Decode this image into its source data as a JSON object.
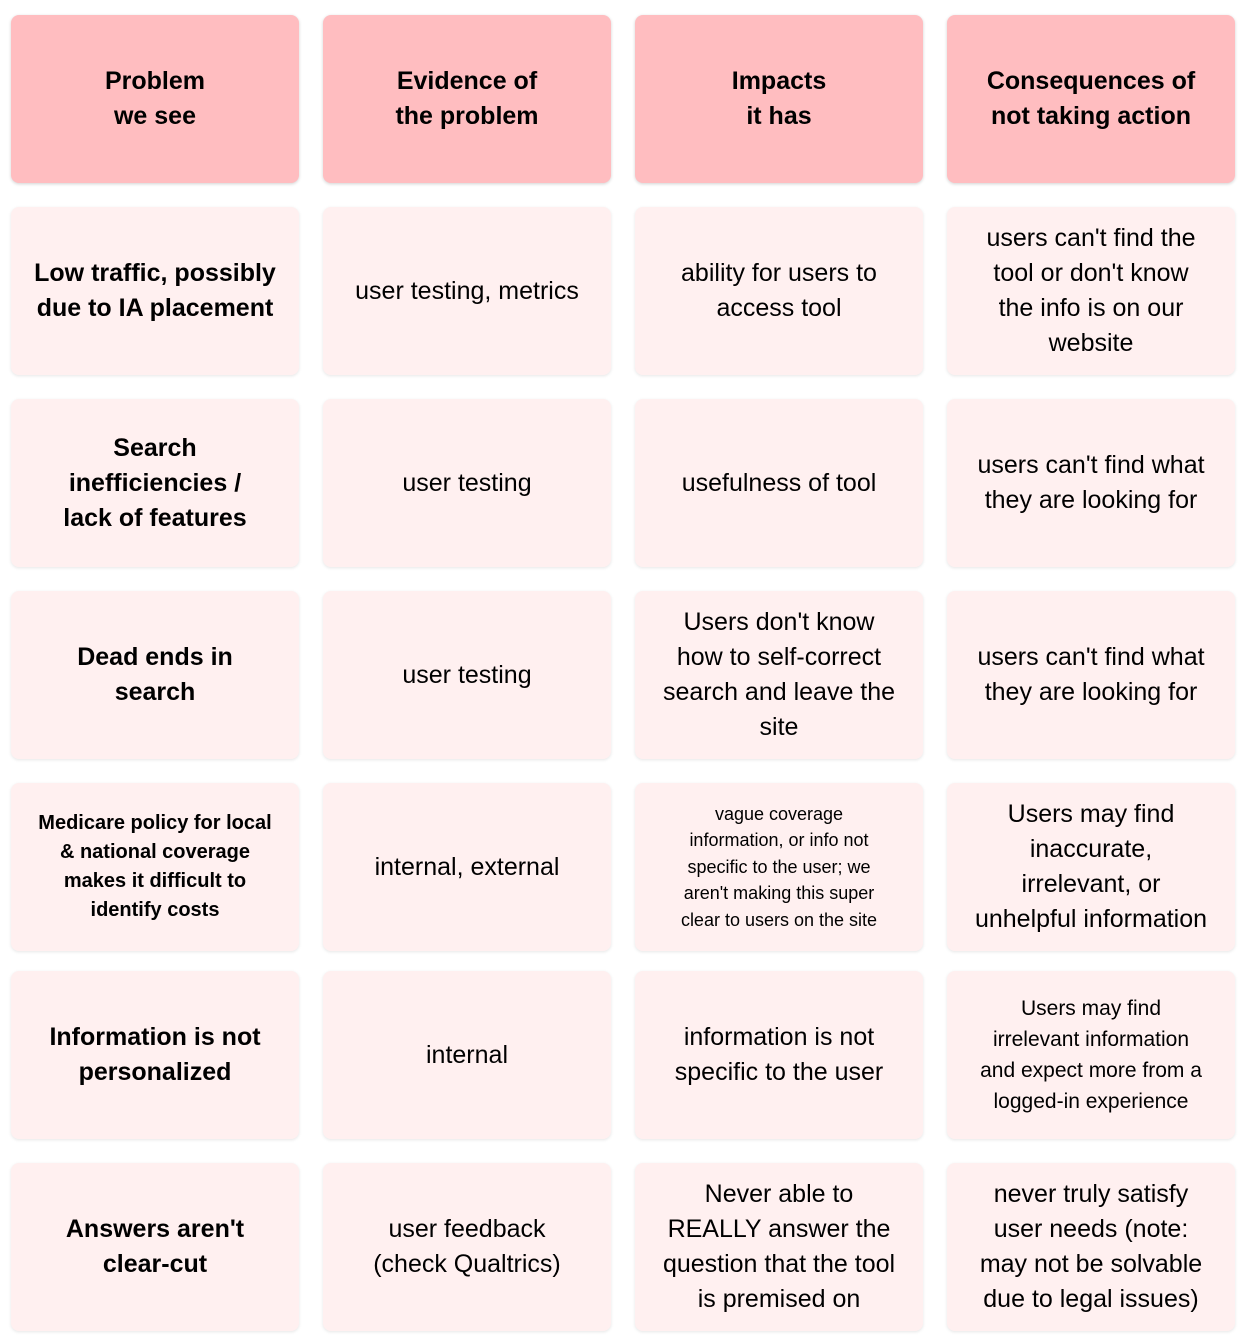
{
  "headers": [
    "Problem\nwe see",
    "Evidence of\nthe problem",
    "Impacts\nit has",
    "Consequences of\nnot taking action"
  ],
  "rows": [
    {
      "problem": "Low traffic, possibly\ndue to IA placement",
      "evidence": "user testing, metrics",
      "impact": "ability for users to\naccess tool",
      "consequence": "users can't find the\ntool or don't know\nthe info is on our\nwebsite"
    },
    {
      "problem": "Search\ninefficiencies /\nlack of features",
      "evidence": "user testing",
      "impact": "usefulness of tool",
      "consequence": "users can't find what\nthey are looking for"
    },
    {
      "problem": "Dead ends in\nsearch",
      "evidence": "user testing",
      "impact": "Users don't know\nhow to self-correct\nsearch and leave the\nsite",
      "consequence": "users can't find what\nthey are looking for"
    },
    {
      "problem": "Medicare policy for local\n& national coverage\nmakes it difficult to\nidentify costs",
      "evidence": "internal, external",
      "impact": "vague coverage\ninformation, or info not\nspecific to the user; we\naren't making this super\nclear to users on the site",
      "consequence": "Users may find\ninaccurate,\nirrelevant, or\nunhelpful information"
    },
    {
      "problem": "Information is not\npersonalized",
      "evidence": "internal",
      "impact": "information is not\nspecific to the user",
      "consequence": "Users may find\nirrelevant information\nand expect more from a\nlogged-in experience"
    },
    {
      "problem": "Answers aren't\nclear-cut",
      "evidence": "user feedback\n(check Qualtrics)",
      "impact": "Never able to\nREALLY answer the\nquestion that the tool\nis premised on",
      "consequence": "never truly satisfy\nuser needs (note:\nmay not be solvable\ndue to legal issues)"
    }
  ]
}
